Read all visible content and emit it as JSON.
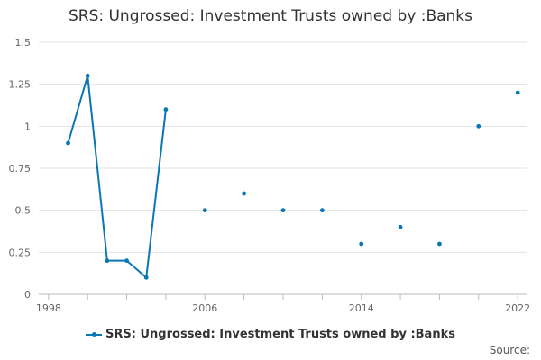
{
  "chart_data": {
    "type": "line",
    "title": "SRS: Ungrossed: Investment Trusts owned by :Banks",
    "xlabel": "",
    "ylabel": "",
    "xlim": [
      1997.5,
      2022.5
    ],
    "ylim": [
      0,
      1.5
    ],
    "x_ticks": [
      1998,
      2006,
      2014,
      2022
    ],
    "x_minor_ticks": [
      1998,
      2000,
      2002,
      2004,
      2006,
      2008,
      2010,
      2012,
      2014,
      2016,
      2018,
      2020,
      2022
    ],
    "y_ticks": [
      0,
      0.25,
      0.5,
      0.75,
      1,
      1.25,
      1.5
    ],
    "y_tick_labels": [
      "0",
      "0.25",
      "0.5",
      "0.75",
      "1",
      "1.25",
      "1.5"
    ],
    "grid": true,
    "legend_position": "bottom",
    "series": [
      {
        "name": "SRS: Ungrossed: Investment Trusts owned by :Banks",
        "color": "#0a77b5",
        "points": [
          {
            "x": 1999,
            "y": 0.9
          },
          {
            "x": 2000,
            "y": 1.3
          },
          {
            "x": 2001,
            "y": 0.2
          },
          {
            "x": 2002,
            "y": 0.2
          },
          {
            "x": 2003,
            "y": 0.1
          },
          {
            "x": 2004,
            "y": 1.1
          },
          {
            "x": 2006,
            "y": 0.5
          },
          {
            "x": 2008,
            "y": 0.6
          },
          {
            "x": 2010,
            "y": 0.5
          },
          {
            "x": 2012,
            "y": 0.5
          },
          {
            "x": 2014,
            "y": 0.3
          },
          {
            "x": 2016,
            "y": 0.4
          },
          {
            "x": 2018,
            "y": 0.3
          },
          {
            "x": 2020,
            "y": 1.0
          },
          {
            "x": 2022,
            "y": 1.2
          }
        ]
      }
    ]
  },
  "source_label": "Source:"
}
